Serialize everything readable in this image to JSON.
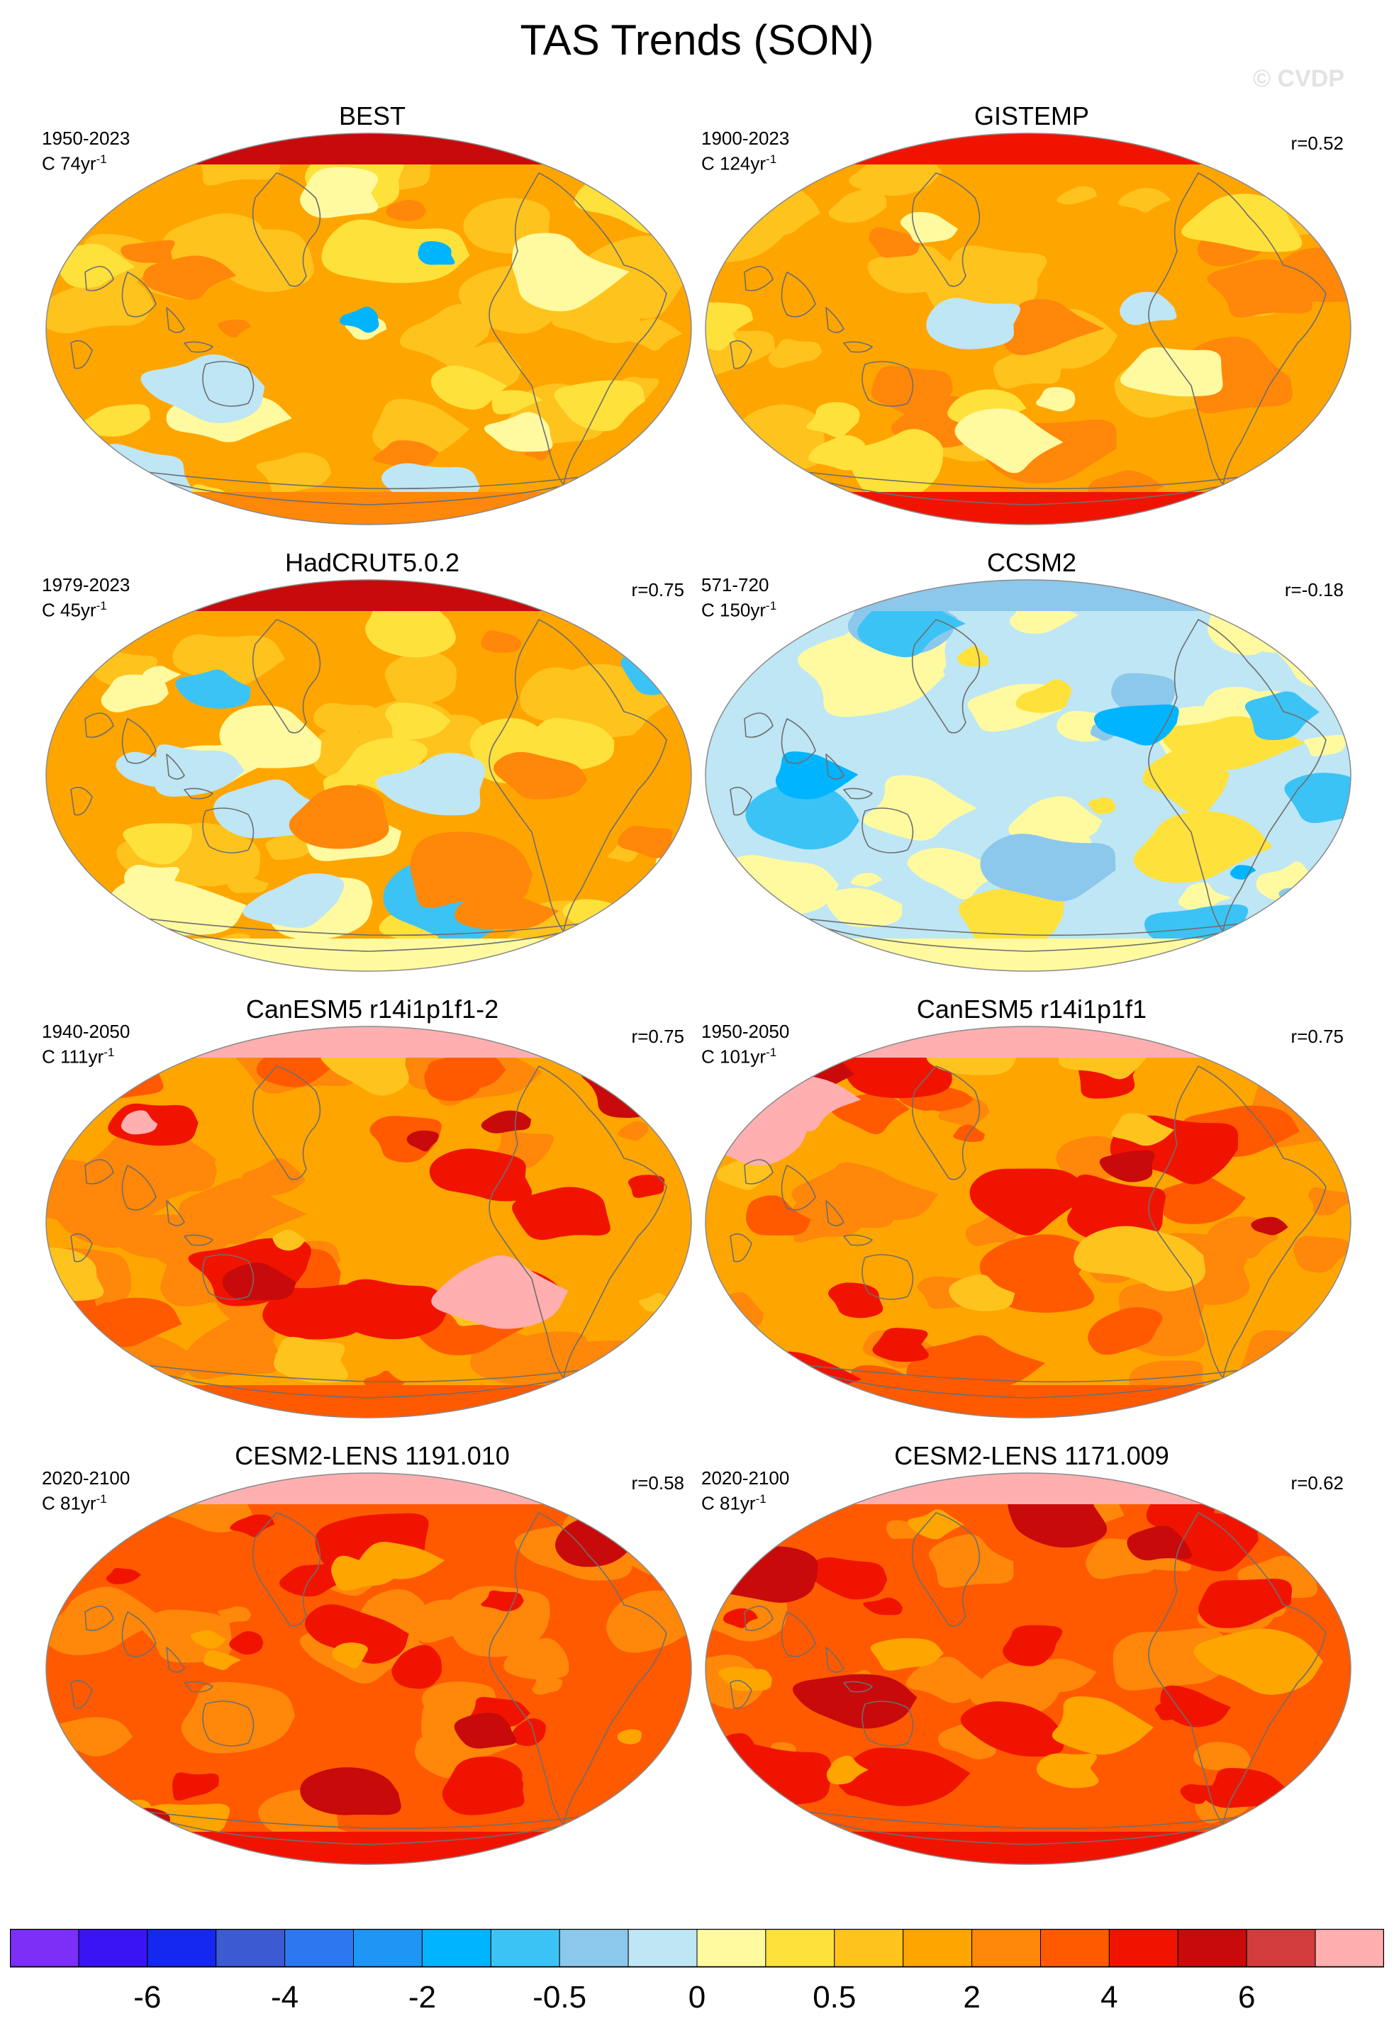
{
  "figure": {
    "title": "TAS Trends (SON)",
    "copyright": "© CVDP"
  },
  "panels": [
    {
      "title": "BEST",
      "period": "1950-2023",
      "unit_base": "C 74yr",
      "unit_exp": "-1",
      "corr": "",
      "scheme": "obs_best"
    },
    {
      "title": "GISTEMP",
      "period": "1900-2023",
      "unit_base": "C 124yr",
      "unit_exp": "-1",
      "corr": "r=0.52",
      "scheme": "obs_gistemp"
    },
    {
      "title": "HadCRUT5.0.2",
      "period": "1979-2023",
      "unit_base": "C 45yr",
      "unit_exp": "-1",
      "corr": "r=0.75",
      "scheme": "obs_hadcrut"
    },
    {
      "title": "CCSM2",
      "period": "571-720",
      "unit_base": "C 150yr",
      "unit_exp": "-1",
      "corr": "r=-0.18",
      "scheme": "ccsm2"
    },
    {
      "title": "CanESM5 r14i1p1f1-2",
      "period": "1940-2050",
      "unit_base": "C 111yr",
      "unit_exp": "-1",
      "corr": "r=0.75",
      "scheme": "canesm"
    },
    {
      "title": "CanESM5 r14i1p1f1",
      "period": "1950-2050",
      "unit_base": "C 101yr",
      "unit_exp": "-1",
      "corr": "r=0.75",
      "scheme": "canesm"
    },
    {
      "title": "CESM2-LENS 1191.010",
      "period": "2020-2100",
      "unit_base": "C 81yr",
      "unit_exp": "-1",
      "corr": "r=0.58",
      "scheme": "cesm"
    },
    {
      "title": "CESM2-LENS 1171.009",
      "period": "2020-2100",
      "unit_base": "C 81yr",
      "unit_exp": "-1",
      "corr": "r=0.62",
      "scheme": "cesm"
    }
  ],
  "colorbar": {
    "colors": [
      "#7b2ff7",
      "#3b14f5",
      "#1428f0",
      "#3c5ad2",
      "#2d78f0",
      "#1e96f5",
      "#00b4ff",
      "#3cc3f5",
      "#8cc8eb",
      "#bee6f5",
      "#fffaa0",
      "#ffe13c",
      "#ffc31e",
      "#ffa500",
      "#ff870a",
      "#ff5a00",
      "#f01400",
      "#c80a0a",
      "#d23c3c",
      "#ffafaf"
    ],
    "tick_labels": [
      "-6",
      "-4",
      "-2",
      "-0.5",
      "0",
      "0.5",
      "2",
      "4",
      "6"
    ],
    "tick_boundaries": [
      2,
      4,
      6,
      8,
      10,
      12,
      14,
      16,
      18
    ]
  },
  "map_colors": {
    "ocean_outline": "#8a8a8a",
    "coast": "#6e6e6e"
  }
}
